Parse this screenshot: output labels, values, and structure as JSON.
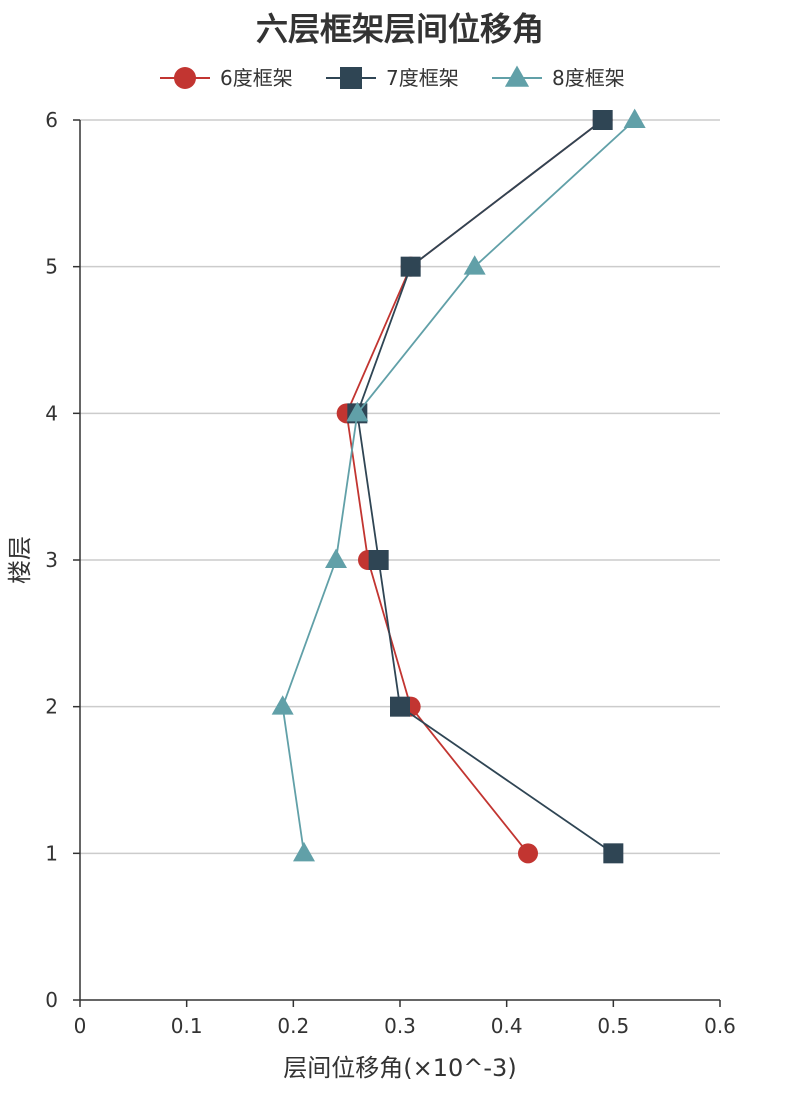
{
  "chart_data": {
    "type": "line",
    "title": "六层框架层间位移角",
    "xlabel": "层间位移角(×10^-3)",
    "ylabel": "楼层",
    "xlim": [
      0,
      0.6
    ],
    "ylim": [
      0,
      6
    ],
    "x_ticks": [
      "0",
      "0.1",
      "0.2",
      "0.3",
      "0.4",
      "0.5",
      "0.6"
    ],
    "y_ticks": [
      "0",
      "1",
      "2",
      "3",
      "4",
      "5",
      "6"
    ],
    "grid": "horizontal",
    "legend_position": "top",
    "series": [
      {
        "name": "6度框架",
        "color": "#c23531",
        "marker": "circle",
        "points": [
          [
            0.42,
            1
          ],
          [
            0.31,
            2
          ],
          [
            0.27,
            3
          ],
          [
            0.25,
            4
          ],
          [
            0.31,
            5
          ],
          [
            0.49,
            6
          ]
        ]
      },
      {
        "name": "7度框架",
        "color": "#2f4554",
        "marker": "square",
        "points": [
          [
            0.5,
            1
          ],
          [
            0.3,
            2
          ],
          [
            0.28,
            3
          ],
          [
            0.26,
            4
          ],
          [
            0.31,
            5
          ],
          [
            0.49,
            6
          ]
        ]
      },
      {
        "name": "8度框架",
        "color": "#61a0a8",
        "marker": "triangle",
        "points": [
          [
            0.21,
            1
          ],
          [
            0.19,
            2
          ],
          [
            0.24,
            3
          ],
          [
            0.26,
            4
          ],
          [
            0.37,
            5
          ],
          [
            0.52,
            6
          ]
        ]
      }
    ]
  }
}
